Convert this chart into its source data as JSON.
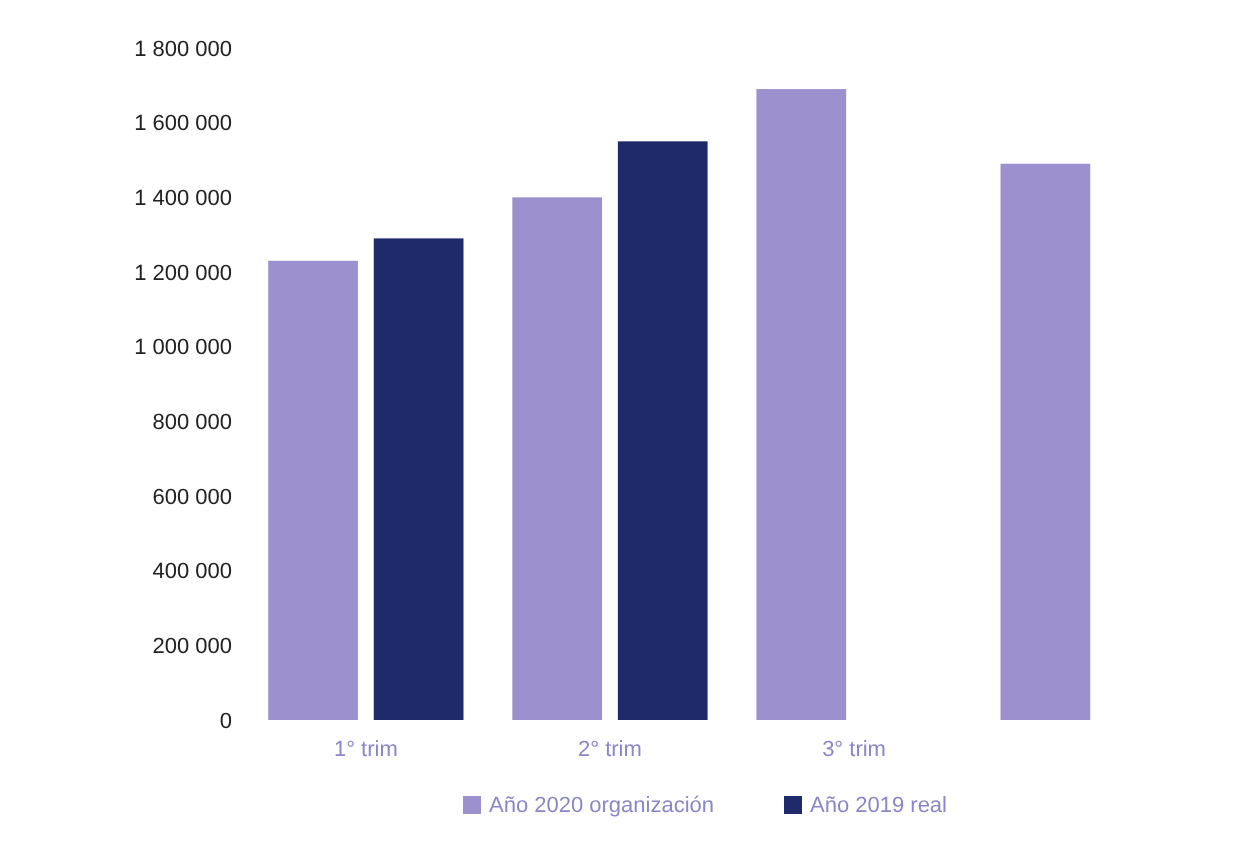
{
  "chart_data": {
    "type": "bar",
    "categories": [
      "1° trim",
      "2° trim",
      "3° trim",
      null
    ],
    "series": [
      {
        "name": "Año 2020 organización",
        "color": "#9d90cf",
        "values": [
          1230000,
          1400000,
          1690000,
          1490000
        ]
      },
      {
        "name": "Año 2019 real",
        "color": "#1f2a6b",
        "values": [
          1290000,
          1550000,
          null,
          null
        ]
      }
    ],
    "ylim": [
      0,
      1800000
    ],
    "yticks": [
      {
        "value": 0,
        "label": "0"
      },
      {
        "value": 200000,
        "label": "200 000"
      },
      {
        "value": 400000,
        "label": "400 000"
      },
      {
        "value": 600000,
        "label": "600 000"
      },
      {
        "value": 800000,
        "label": "800 000"
      },
      {
        "value": 1000000,
        "label": "1 000 000"
      },
      {
        "value": 1200000,
        "label": "1 200 000"
      },
      {
        "value": 1400000,
        "label": "1 400 000"
      },
      {
        "value": 1600000,
        "label": "1 600 000"
      },
      {
        "value": 1800000,
        "label": "1 800 000"
      }
    ],
    "legend": "bottom"
  }
}
